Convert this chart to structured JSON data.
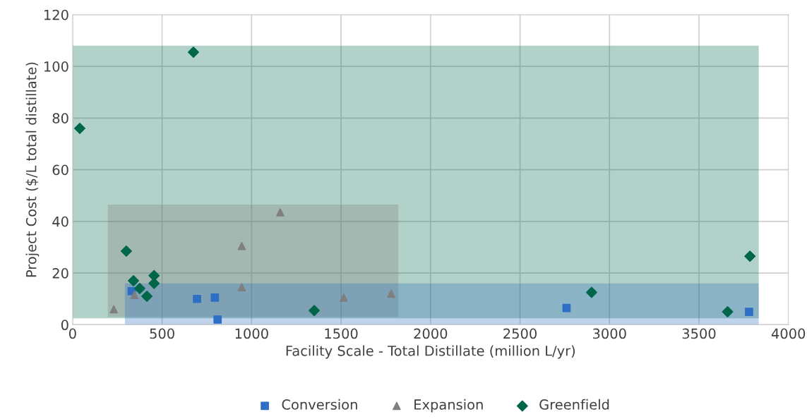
{
  "chart_data": {
    "type": "scatter",
    "xlabel": "Facility Scale - Total Distillate (million L/yr)",
    "ylabel": "Project Cost ($/L total distillate)",
    "xlim": [
      0,
      4000
    ],
    "xticks": [
      0,
      500,
      1000,
      1500,
      2000,
      2500,
      3000,
      3500,
      4000
    ],
    "ylim": [
      0,
      120
    ],
    "yticks": [
      0,
      20,
      40,
      60,
      80,
      100,
      120
    ],
    "grid": true,
    "legend": "bottom",
    "series": [
      {
        "type": "line",
        "color": "#00664a",
        "x": [
          0,
          3834
        ],
        "values": [
          null,
          null
        ],
        "lower": [
          2.5,
          2.5
        ],
        "upper": [
          108,
          108
        ]
      },
      {
        "type": "line",
        "color": "#7f7f7f",
        "x": [
          197,
          1820
        ],
        "values": [
          null,
          null
        ],
        "lower": [
          3,
          3
        ],
        "upper": [
          46.5,
          46.5
        ]
      },
      {
        "type": "line",
        "color": "#2e6ec4",
        "x": [
          292,
          3834
        ],
        "values": [
          null,
          null
        ],
        "lower": [
          0,
          0
        ],
        "upper": [
          16,
          16
        ]
      },
      {
        "name": "Conversion",
        "marker": "square",
        "color": "#2e6ec4",
        "x": [
          330,
          695,
          795,
          810,
          2760,
          3780
        ],
        "values": [
          13,
          10,
          10.5,
          2,
          6.5,
          5
        ]
      },
      {
        "name": "Expansion",
        "marker": "triangle",
        "color": "#7f7f7f",
        "x": [
          230,
          345,
          945,
          945,
          1160,
          1515,
          1780
        ],
        "values": [
          6,
          11.5,
          30.5,
          14.5,
          43.5,
          10.5,
          12
        ]
      },
      {
        "name": "Greenfield",
        "marker": "diamond",
        "color": "#00664a",
        "x": [
          40,
          675,
          300,
          340,
          375,
          415,
          455,
          455,
          1350,
          2900,
          3660,
          3785
        ],
        "values": [
          76,
          105.5,
          28.5,
          17,
          14,
          11,
          19,
          16,
          5.5,
          12.5,
          5,
          26.5
        ]
      }
    ]
  }
}
